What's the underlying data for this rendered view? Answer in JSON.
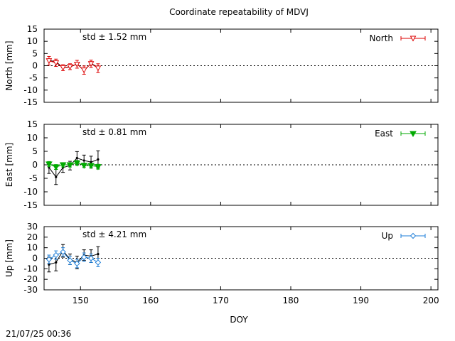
{
  "title": "Coordinate repeatability of MDVJ",
  "timestamp": "21/07/25 00:36",
  "xlabel": "DOY",
  "x_ticks": [
    "150",
    "160",
    "170",
    "180",
    "190",
    "200"
  ],
  "chart_data": [
    {
      "type": "line",
      "name": "north-panel",
      "ylabel": "North [mm]",
      "xlim": [
        144.8,
        201
      ],
      "ylim": [
        -15,
        15
      ],
      "y_ticks": [
        "15",
        "10",
        "5",
        "0",
        "-5",
        "-10",
        "-15"
      ],
      "std_label": "std ± 1.52 mm",
      "color": "#dd0000",
      "marker": "triangle-down-open",
      "legend": "North",
      "legend_position": "top-right",
      "series": [
        {
          "role": "raw",
          "x": [
            145.5,
            146.5,
            147.5,
            148.5,
            149.5,
            150.5,
            151.5,
            152.5
          ],
          "y": [
            2.2,
            1.6,
            -0.8,
            -0.6,
            0.8,
            -2.0,
            0.9,
            -0.6
          ]
        },
        {
          "role": "filtered",
          "x": [
            145.5,
            146.5,
            147.5,
            148.5,
            149.5,
            150.5,
            151.5,
            152.5
          ],
          "y": [
            2.0,
            1.2,
            -0.8,
            -0.4,
            0.6,
            -1.8,
            0.8,
            -1.0
          ],
          "err": [
            1.8,
            1.5,
            1.2,
            1.2,
            1.6,
            1.7,
            1.5,
            1.8
          ]
        }
      ]
    },
    {
      "type": "line",
      "name": "east-panel",
      "ylabel": "East [mm]",
      "xlim": [
        144.8,
        201
      ],
      "ylim": [
        -15,
        15
      ],
      "y_ticks": [
        "15",
        "10",
        "5",
        "0",
        "-5",
        "-10",
        "-15"
      ],
      "std_label": "std ± 0.81 mm",
      "color": "#00aa00",
      "marker": "triangle-down-filled",
      "legend": "East",
      "legend_position": "top-right",
      "series": [
        {
          "role": "raw",
          "x": [
            145.5,
            146.5,
            147.5,
            148.5,
            149.5,
            150.5,
            151.5,
            152.5
          ],
          "y": [
            -1.0,
            -4.5,
            -1.0,
            -0.3,
            2.5,
            1.6,
            1.0,
            2.0
          ],
          "err": [
            2.2,
            2.8,
            1.8,
            1.6,
            2.4,
            2.0,
            2.2,
            3.2
          ]
        },
        {
          "role": "filtered",
          "x": [
            145.5,
            146.5,
            147.5,
            148.5,
            149.5,
            150.5,
            151.5,
            152.5
          ],
          "y": [
            0.3,
            -0.8,
            0.0,
            0.0,
            0.7,
            -0.2,
            -0.3,
            -0.7
          ],
          "err": [
            0.9,
            0.9,
            0.8,
            0.8,
            0.9,
            0.8,
            0.8,
            0.9
          ]
        }
      ]
    },
    {
      "type": "line",
      "name": "up-panel",
      "ylabel": "Up [mm]",
      "xlim": [
        144.8,
        201
      ],
      "ylim": [
        -30,
        30
      ],
      "y_ticks": [
        "30",
        "20",
        "10",
        "0",
        "-10",
        "-20",
        "-30"
      ],
      "std_label": "std ± 4.21 mm",
      "color": "#1f7fd8",
      "marker": "diamond-open",
      "legend": "Up",
      "legend_position": "top-right",
      "series": [
        {
          "role": "raw",
          "x": [
            145.5,
            146.5,
            147.5,
            148.5,
            149.5,
            150.5,
            151.5,
            152.5
          ],
          "y": [
            -6.0,
            -4.0,
            7.0,
            -1.0,
            -4.0,
            3.0,
            2.0,
            4.0
          ],
          "err": [
            7.0,
            8.0,
            6.0,
            5.0,
            6.0,
            5.0,
            6.0,
            7.0
          ]
        },
        {
          "role": "filtered",
          "x": [
            145.5,
            146.5,
            147.5,
            148.5,
            149.5,
            150.5,
            151.5,
            152.5
          ],
          "y": [
            -1.0,
            3.0,
            6.0,
            -2.0,
            -5.0,
            1.0,
            0.0,
            -4.0
          ],
          "err": [
            4.0,
            4.0,
            4.0,
            4.0,
            4.0,
            4.0,
            4.0,
            4.0
          ]
        }
      ]
    }
  ]
}
